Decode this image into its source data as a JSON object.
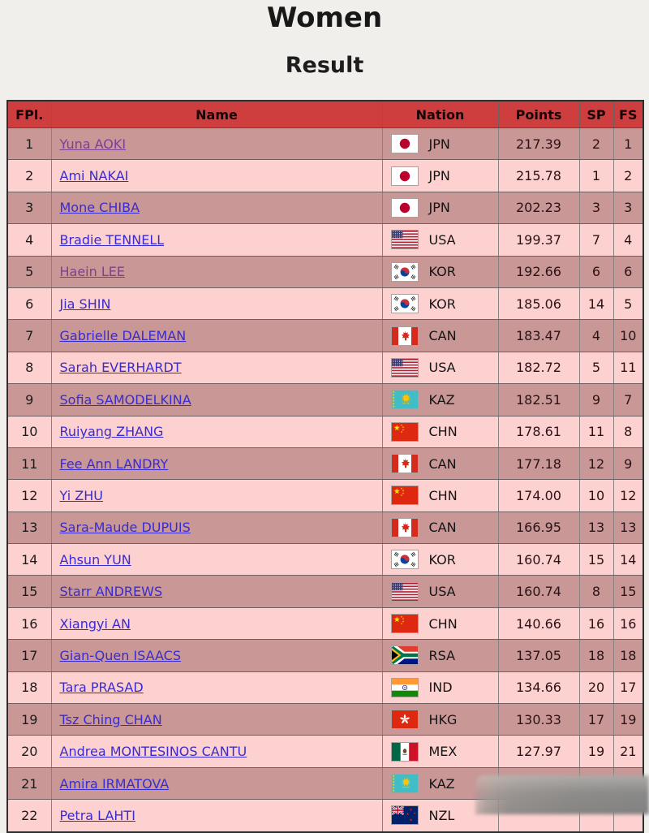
{
  "page": {
    "title": "Women",
    "subtitle": "Result"
  },
  "colors": {
    "page_bg": "#f0efec",
    "header_bg": "#cf3e3e",
    "row_odd": "#c89796",
    "row_even": "#fdd1cf",
    "link": "#3a2bcf",
    "link_visited": "#7d3f98"
  },
  "table": {
    "headers": {
      "fpl": "FPl.",
      "name": "Name",
      "nation": "Nation",
      "points": "Points",
      "sp": "SP",
      "fs": "FS"
    },
    "rows": [
      {
        "fpl": "1",
        "name": "Yuna AOKI",
        "nation": "JPN",
        "points": "217.39",
        "sp": "2",
        "fs": "1",
        "visited": true
      },
      {
        "fpl": "2",
        "name": "Ami NAKAI",
        "nation": "JPN",
        "points": "215.78",
        "sp": "1",
        "fs": "2",
        "visited": false
      },
      {
        "fpl": "3",
        "name": "Mone CHIBA",
        "nation": "JPN",
        "points": "202.23",
        "sp": "3",
        "fs": "3",
        "visited": false
      },
      {
        "fpl": "4",
        "name": "Bradie TENNELL",
        "nation": "USA",
        "points": "199.37",
        "sp": "7",
        "fs": "4",
        "visited": false
      },
      {
        "fpl": "5",
        "name": "Haein LEE",
        "nation": "KOR",
        "points": "192.66",
        "sp": "6",
        "fs": "6",
        "visited": true
      },
      {
        "fpl": "6",
        "name": "Jia SHIN",
        "nation": "KOR",
        "points": "185.06",
        "sp": "14",
        "fs": "5",
        "visited": false
      },
      {
        "fpl": "7",
        "name": "Gabrielle DALEMAN",
        "nation": "CAN",
        "points": "183.47",
        "sp": "4",
        "fs": "10",
        "visited": false
      },
      {
        "fpl": "8",
        "name": "Sarah EVERHARDT",
        "nation": "USA",
        "points": "182.72",
        "sp": "5",
        "fs": "11",
        "visited": false
      },
      {
        "fpl": "9",
        "name": "Sofia SAMODELKINA",
        "nation": "KAZ",
        "points": "182.51",
        "sp": "9",
        "fs": "7",
        "visited": false
      },
      {
        "fpl": "10",
        "name": "Ruiyang ZHANG",
        "nation": "CHN",
        "points": "178.61",
        "sp": "11",
        "fs": "8",
        "visited": false
      },
      {
        "fpl": "11",
        "name": "Fee Ann LANDRY",
        "nation": "CAN",
        "points": "177.18",
        "sp": "12",
        "fs": "9",
        "visited": false
      },
      {
        "fpl": "12",
        "name": "Yi ZHU",
        "nation": "CHN",
        "points": "174.00",
        "sp": "10",
        "fs": "12",
        "visited": false
      },
      {
        "fpl": "13",
        "name": "Sara-Maude DUPUIS",
        "nation": "CAN",
        "points": "166.95",
        "sp": "13",
        "fs": "13",
        "visited": false
      },
      {
        "fpl": "14",
        "name": "Ahsun YUN",
        "nation": "KOR",
        "points": "160.74",
        "sp": "15",
        "fs": "14",
        "visited": false
      },
      {
        "fpl": "15",
        "name": "Starr ANDREWS",
        "nation": "USA",
        "points": "160.74",
        "sp": "8",
        "fs": "15",
        "visited": false
      },
      {
        "fpl": "16",
        "name": "Xiangyi AN",
        "nation": "CHN",
        "points": "140.66",
        "sp": "16",
        "fs": "16",
        "visited": false
      },
      {
        "fpl": "17",
        "name": "Gian-Quen ISAACS",
        "nation": "RSA",
        "points": "137.05",
        "sp": "18",
        "fs": "18",
        "visited": false
      },
      {
        "fpl": "18",
        "name": "Tara PRASAD",
        "nation": "IND",
        "points": "134.66",
        "sp": "20",
        "fs": "17",
        "visited": false
      },
      {
        "fpl": "19",
        "name": "Tsz Ching CHAN",
        "nation": "HKG",
        "points": "130.33",
        "sp": "17",
        "fs": "19",
        "visited": false
      },
      {
        "fpl": "20",
        "name": "Andrea MONTESINOS CANTU",
        "nation": "MEX",
        "points": "127.97",
        "sp": "19",
        "fs": "21",
        "visited": false
      },
      {
        "fpl": "21",
        "name": "Amira IRMATOVA",
        "nation": "KAZ",
        "points": "123.20",
        "sp": "21",
        "fs": "20",
        "visited": false
      },
      {
        "fpl": "22",
        "name": "Petra LAHTI",
        "nation": "NZL",
        "points": "",
        "sp": "",
        "fs": "",
        "visited": false
      }
    ]
  }
}
